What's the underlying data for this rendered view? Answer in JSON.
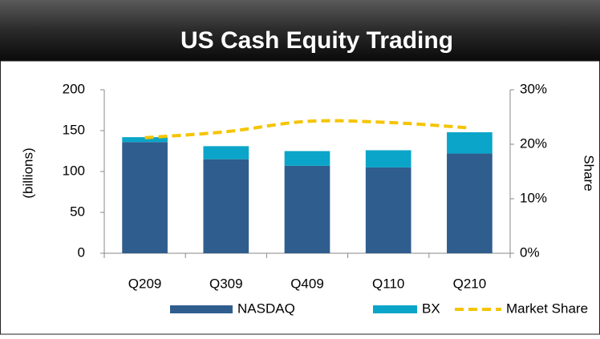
{
  "chart_data": {
    "type": "bar",
    "stacked": true,
    "title": "US Cash Equity Trading",
    "ylabel": "(billions)",
    "y2label": "Share",
    "categories": [
      "Q209",
      "Q309",
      "Q409",
      "Q110",
      "Q210"
    ],
    "series": [
      {
        "name": "NASDAQ",
        "color": "#2f5d8e",
        "values": [
          136,
          115,
          107,
          105,
          122
        ]
      },
      {
        "name": "BX",
        "color": "#0aa5c8",
        "values": [
          6,
          16,
          18,
          21,
          26
        ]
      },
      {
        "name": "Market Share",
        "type": "line",
        "axis": "y2",
        "color": "#f5c400",
        "dashed": true,
        "values": [
          21.2,
          22.3,
          24.2,
          24.0,
          23.0
        ]
      }
    ],
    "ylim": [
      0,
      200
    ],
    "yticks": [
      0,
      50,
      100,
      150,
      200
    ],
    "y2lim": [
      0,
      30
    ],
    "y2ticks": [
      {
        "value": 0,
        "label": "0%"
      },
      {
        "value": 10,
        "label": "10%"
      },
      {
        "value": 20,
        "label": "20%"
      },
      {
        "value": 30,
        "label": "30%"
      }
    ],
    "grid": false,
    "legend": "bottom"
  }
}
